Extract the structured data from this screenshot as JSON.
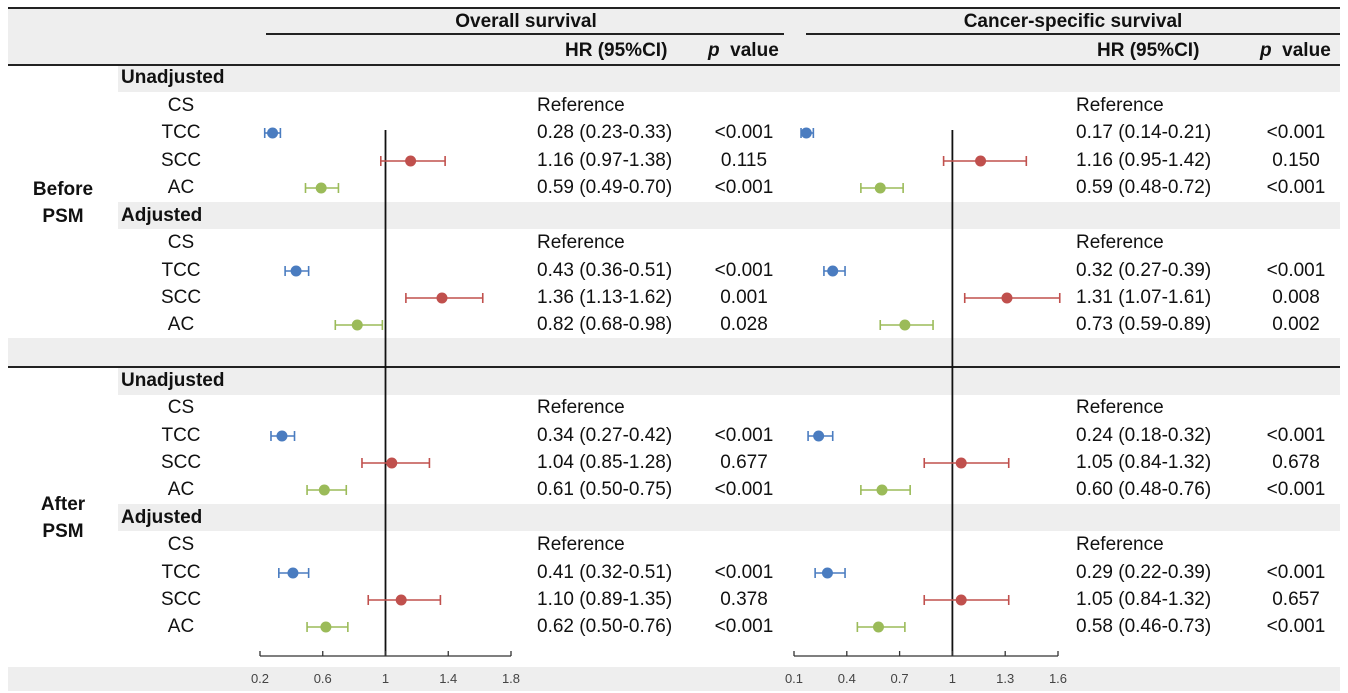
{
  "panels": [
    {
      "title": "Overall survival",
      "hr_header": "HR (95%CI)",
      "p_header_italic": "p",
      "p_header_rest": "value",
      "axis_ticks": [
        "0.2",
        "0.6",
        "1",
        "1.4",
        "1.8"
      ]
    },
    {
      "title": "Cancer-specific survival",
      "hr_header": "HR (95%CI)",
      "p_header_italic": "p",
      "p_header_rest": "value",
      "axis_ticks": [
        "0.1",
        "0.4",
        "0.7",
        "1",
        "1.3",
        "1.6"
      ]
    }
  ],
  "groups": [
    {
      "label_line1": "Before",
      "label_line2": "PSM"
    },
    {
      "label_line1": "After",
      "label_line2": "PSM"
    }
  ],
  "rows": [
    {
      "section": "Unadjusted"
    },
    {
      "label": "CS",
      "os_text": "Reference",
      "os_p": "",
      "css_text": "Reference",
      "css_p": ""
    },
    {
      "label": "TCC",
      "os_text": "0.28 (0.23-0.33)",
      "os_p": "<0.001",
      "css_text": "0.17 (0.14-0.21)",
      "css_p": "<0.001"
    },
    {
      "label": "SCC",
      "os_text": "1.16 (0.97-1.38)",
      "os_p": "0.115",
      "css_text": "1.16 (0.95-1.42)",
      "css_p": "0.150"
    },
    {
      "label": "AC",
      "os_text": "0.59 (0.49-0.70)",
      "os_p": "<0.001",
      "css_text": "0.59 (0.48-0.72)",
      "css_p": "<0.001"
    },
    {
      "section": "Adjusted"
    },
    {
      "label": "CS",
      "os_text": "Reference",
      "os_p": "",
      "css_text": "Reference",
      "css_p": ""
    },
    {
      "label": "TCC",
      "os_text": "0.43 (0.36-0.51)",
      "os_p": "<0.001",
      "css_text": "0.32 (0.27-0.39)",
      "css_p": "<0.001"
    },
    {
      "label": "SCC",
      "os_text": "1.36 (1.13-1.62)",
      "os_p": "0.001",
      "css_text": "1.31 (1.07-1.61)",
      "css_p": "0.008"
    },
    {
      "label": "AC",
      "os_text": "0.82 (0.68-0.98)",
      "os_p": "0.028",
      "css_text": "0.73 (0.59-0.89)",
      "css_p": "0.002"
    },
    {
      "section": "Unadjusted"
    },
    {
      "label": "CS",
      "os_text": "Reference",
      "os_p": "",
      "css_text": "Reference",
      "css_p": ""
    },
    {
      "label": "TCC",
      "os_text": "0.34 (0.27-0.42)",
      "os_p": "<0.001",
      "css_text": "0.24 (0.18-0.32)",
      "css_p": "<0.001"
    },
    {
      "label": "SCC",
      "os_text": "1.04 (0.85-1.28)",
      "os_p": "0.677",
      "css_text": "1.05 (0.84-1.32)",
      "css_p": "0.678"
    },
    {
      "label": "AC",
      "os_text": "0.61 (0.50-0.75)",
      "os_p": "<0.001",
      "css_text": "0.60 (0.48-0.76)",
      "css_p": "<0.001"
    },
    {
      "section": "Adjusted"
    },
    {
      "label": "CS",
      "os_text": "Reference",
      "os_p": "",
      "css_text": "Reference",
      "css_p": ""
    },
    {
      "label": "TCC",
      "os_text": "0.41 (0.32-0.51)",
      "os_p": "<0.001",
      "css_text": "0.29 (0.22-0.39)",
      "css_p": "<0.001"
    },
    {
      "label": "SCC",
      "os_text": "1.10 (0.89-1.35)",
      "os_p": "0.378",
      "css_text": "1.05 (0.84-1.32)",
      "css_p": "0.657"
    },
    {
      "label": "AC",
      "os_text": "0.62 (0.50-0.76)",
      "os_p": "<0.001",
      "css_text": "0.58 (0.46-0.73)",
      "css_p": "<0.001"
    }
  ],
  "colors": {
    "TCC": "#4a7cc0",
    "SCC": "#c0504d",
    "AC": "#9bbb59",
    "band": "#eeeeee"
  },
  "chart_data": [
    {
      "type": "forest",
      "title": "Overall survival",
      "xlim": [
        0.2,
        1.8
      ],
      "ticks": [
        0.2,
        0.6,
        1,
        1.4,
        1.8
      ],
      "reference_line": 1,
      "series": [
        {
          "group": "Before PSM",
          "model": "Unadjusted",
          "name": "TCC",
          "hr": 0.28,
          "lo": 0.23,
          "hi": 0.33
        },
        {
          "group": "Before PSM",
          "model": "Unadjusted",
          "name": "SCC",
          "hr": 1.16,
          "lo": 0.97,
          "hi": 1.38
        },
        {
          "group": "Before PSM",
          "model": "Unadjusted",
          "name": "AC",
          "hr": 0.59,
          "lo": 0.49,
          "hi": 0.7
        },
        {
          "group": "Before PSM",
          "model": "Adjusted",
          "name": "TCC",
          "hr": 0.43,
          "lo": 0.36,
          "hi": 0.51
        },
        {
          "group": "Before PSM",
          "model": "Adjusted",
          "name": "SCC",
          "hr": 1.36,
          "lo": 1.13,
          "hi": 1.62
        },
        {
          "group": "Before PSM",
          "model": "Adjusted",
          "name": "AC",
          "hr": 0.82,
          "lo": 0.68,
          "hi": 0.98
        },
        {
          "group": "After PSM",
          "model": "Unadjusted",
          "name": "TCC",
          "hr": 0.34,
          "lo": 0.27,
          "hi": 0.42
        },
        {
          "group": "After PSM",
          "model": "Unadjusted",
          "name": "SCC",
          "hr": 1.04,
          "lo": 0.85,
          "hi": 1.28
        },
        {
          "group": "After PSM",
          "model": "Unadjusted",
          "name": "AC",
          "hr": 0.61,
          "lo": 0.5,
          "hi": 0.75
        },
        {
          "group": "After PSM",
          "model": "Adjusted",
          "name": "TCC",
          "hr": 0.41,
          "lo": 0.32,
          "hi": 0.51
        },
        {
          "group": "After PSM",
          "model": "Adjusted",
          "name": "SCC",
          "hr": 1.1,
          "lo": 0.89,
          "hi": 1.35
        },
        {
          "group": "After PSM",
          "model": "Adjusted",
          "name": "AC",
          "hr": 0.62,
          "lo": 0.5,
          "hi": 0.76
        }
      ]
    },
    {
      "type": "forest",
      "title": "Cancer-specific survival",
      "xlim": [
        0.1,
        1.6
      ],
      "ticks": [
        0.1,
        0.4,
        0.7,
        1,
        1.3,
        1.6
      ],
      "reference_line": 1,
      "series": [
        {
          "group": "Before PSM",
          "model": "Unadjusted",
          "name": "TCC",
          "hr": 0.17,
          "lo": 0.14,
          "hi": 0.21
        },
        {
          "group": "Before PSM",
          "model": "Unadjusted",
          "name": "SCC",
          "hr": 1.16,
          "lo": 0.95,
          "hi": 1.42
        },
        {
          "group": "Before PSM",
          "model": "Unadjusted",
          "name": "AC",
          "hr": 0.59,
          "lo": 0.48,
          "hi": 0.72
        },
        {
          "group": "Before PSM",
          "model": "Adjusted",
          "name": "TCC",
          "hr": 0.32,
          "lo": 0.27,
          "hi": 0.39
        },
        {
          "group": "Before PSM",
          "model": "Adjusted",
          "name": "SCC",
          "hr": 1.31,
          "lo": 1.07,
          "hi": 1.61
        },
        {
          "group": "Before PSM",
          "model": "Adjusted",
          "name": "AC",
          "hr": 0.73,
          "lo": 0.59,
          "hi": 0.89
        },
        {
          "group": "After PSM",
          "model": "Unadjusted",
          "name": "TCC",
          "hr": 0.24,
          "lo": 0.18,
          "hi": 0.32
        },
        {
          "group": "After PSM",
          "model": "Unadjusted",
          "name": "SCC",
          "hr": 1.05,
          "lo": 0.84,
          "hi": 1.32
        },
        {
          "group": "After PSM",
          "model": "Unadjusted",
          "name": "AC",
          "hr": 0.6,
          "lo": 0.48,
          "hi": 0.76
        },
        {
          "group": "After PSM",
          "model": "Adjusted",
          "name": "TCC",
          "hr": 0.29,
          "lo": 0.22,
          "hi": 0.39
        },
        {
          "group": "After PSM",
          "model": "Adjusted",
          "name": "SCC",
          "hr": 1.05,
          "lo": 0.84,
          "hi": 1.32
        },
        {
          "group": "After PSM",
          "model": "Adjusted",
          "name": "AC",
          "hr": 0.58,
          "lo": 0.46,
          "hi": 0.73
        }
      ]
    }
  ]
}
